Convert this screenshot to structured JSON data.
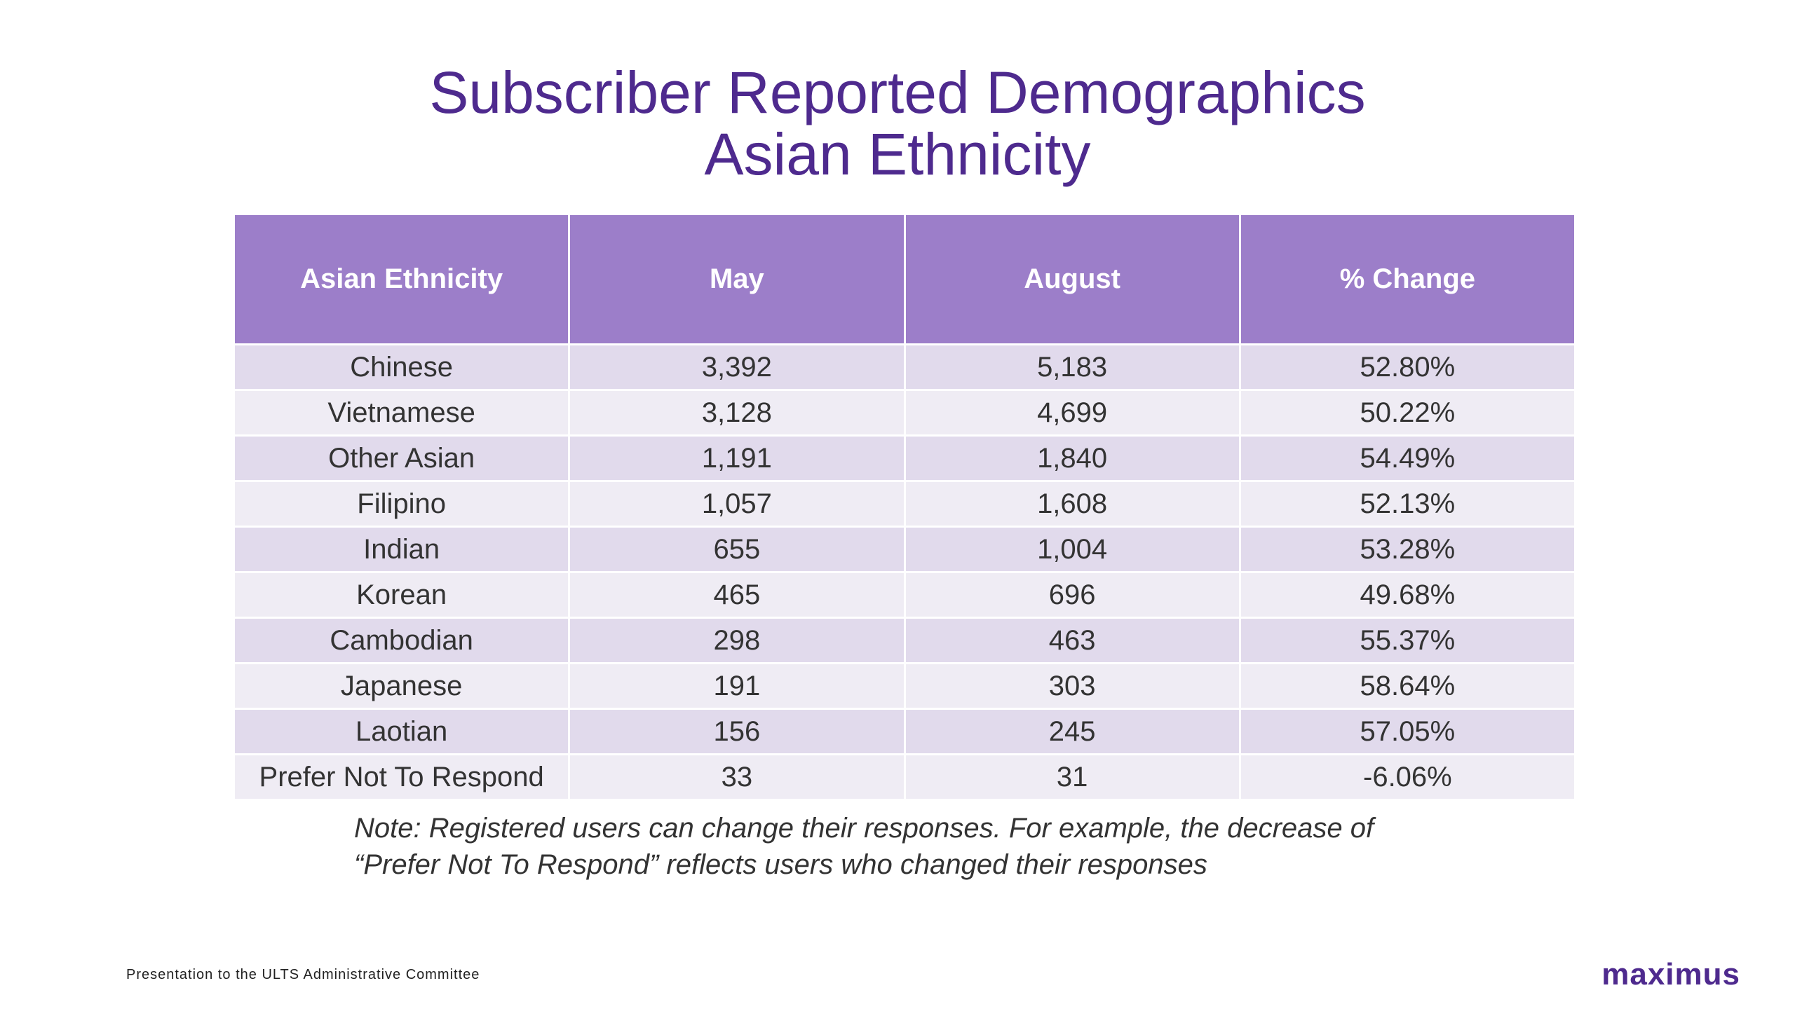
{
  "slide": {
    "title_line1": "Subscriber Reported Demographics",
    "title_line2": "Asian Ethnicity",
    "footer": "Presentation to the ULTS Administrative Committee",
    "logo": "maximus"
  },
  "table": {
    "headers": [
      "Asian Ethnicity",
      "May",
      "August",
      "% Change"
    ],
    "rows": [
      [
        "Chinese",
        "3,392",
        "5,183",
        "52.80%"
      ],
      [
        "Vietnamese",
        "3,128",
        "4,699",
        "50.22%"
      ],
      [
        "Other Asian",
        "1,191",
        "1,840",
        "54.49%"
      ],
      [
        "Filipino",
        "1,057",
        "1,608",
        "52.13%"
      ],
      [
        "Indian",
        "655",
        "1,004",
        "53.28%"
      ],
      [
        "Korean",
        "465",
        "696",
        "49.68%"
      ],
      [
        "Cambodian",
        "298",
        "463",
        "55.37%"
      ],
      [
        "Japanese",
        "191",
        "303",
        "58.64%"
      ],
      [
        "Laotian",
        "156",
        "245",
        "57.05%"
      ],
      [
        "Prefer Not To Respond",
        "33",
        "31",
        "-6.06%"
      ]
    ]
  },
  "note": {
    "line1": "Note: Registered users can change their responses. For example, the decrease of",
    "line2": "“Prefer Not To Respond” reflects users who changed their responses"
  },
  "colors": {
    "title": "#4e2a8e",
    "header_bg": "#9c7ec9",
    "row_odd": "#e1daec",
    "row_even": "#efecf4"
  }
}
